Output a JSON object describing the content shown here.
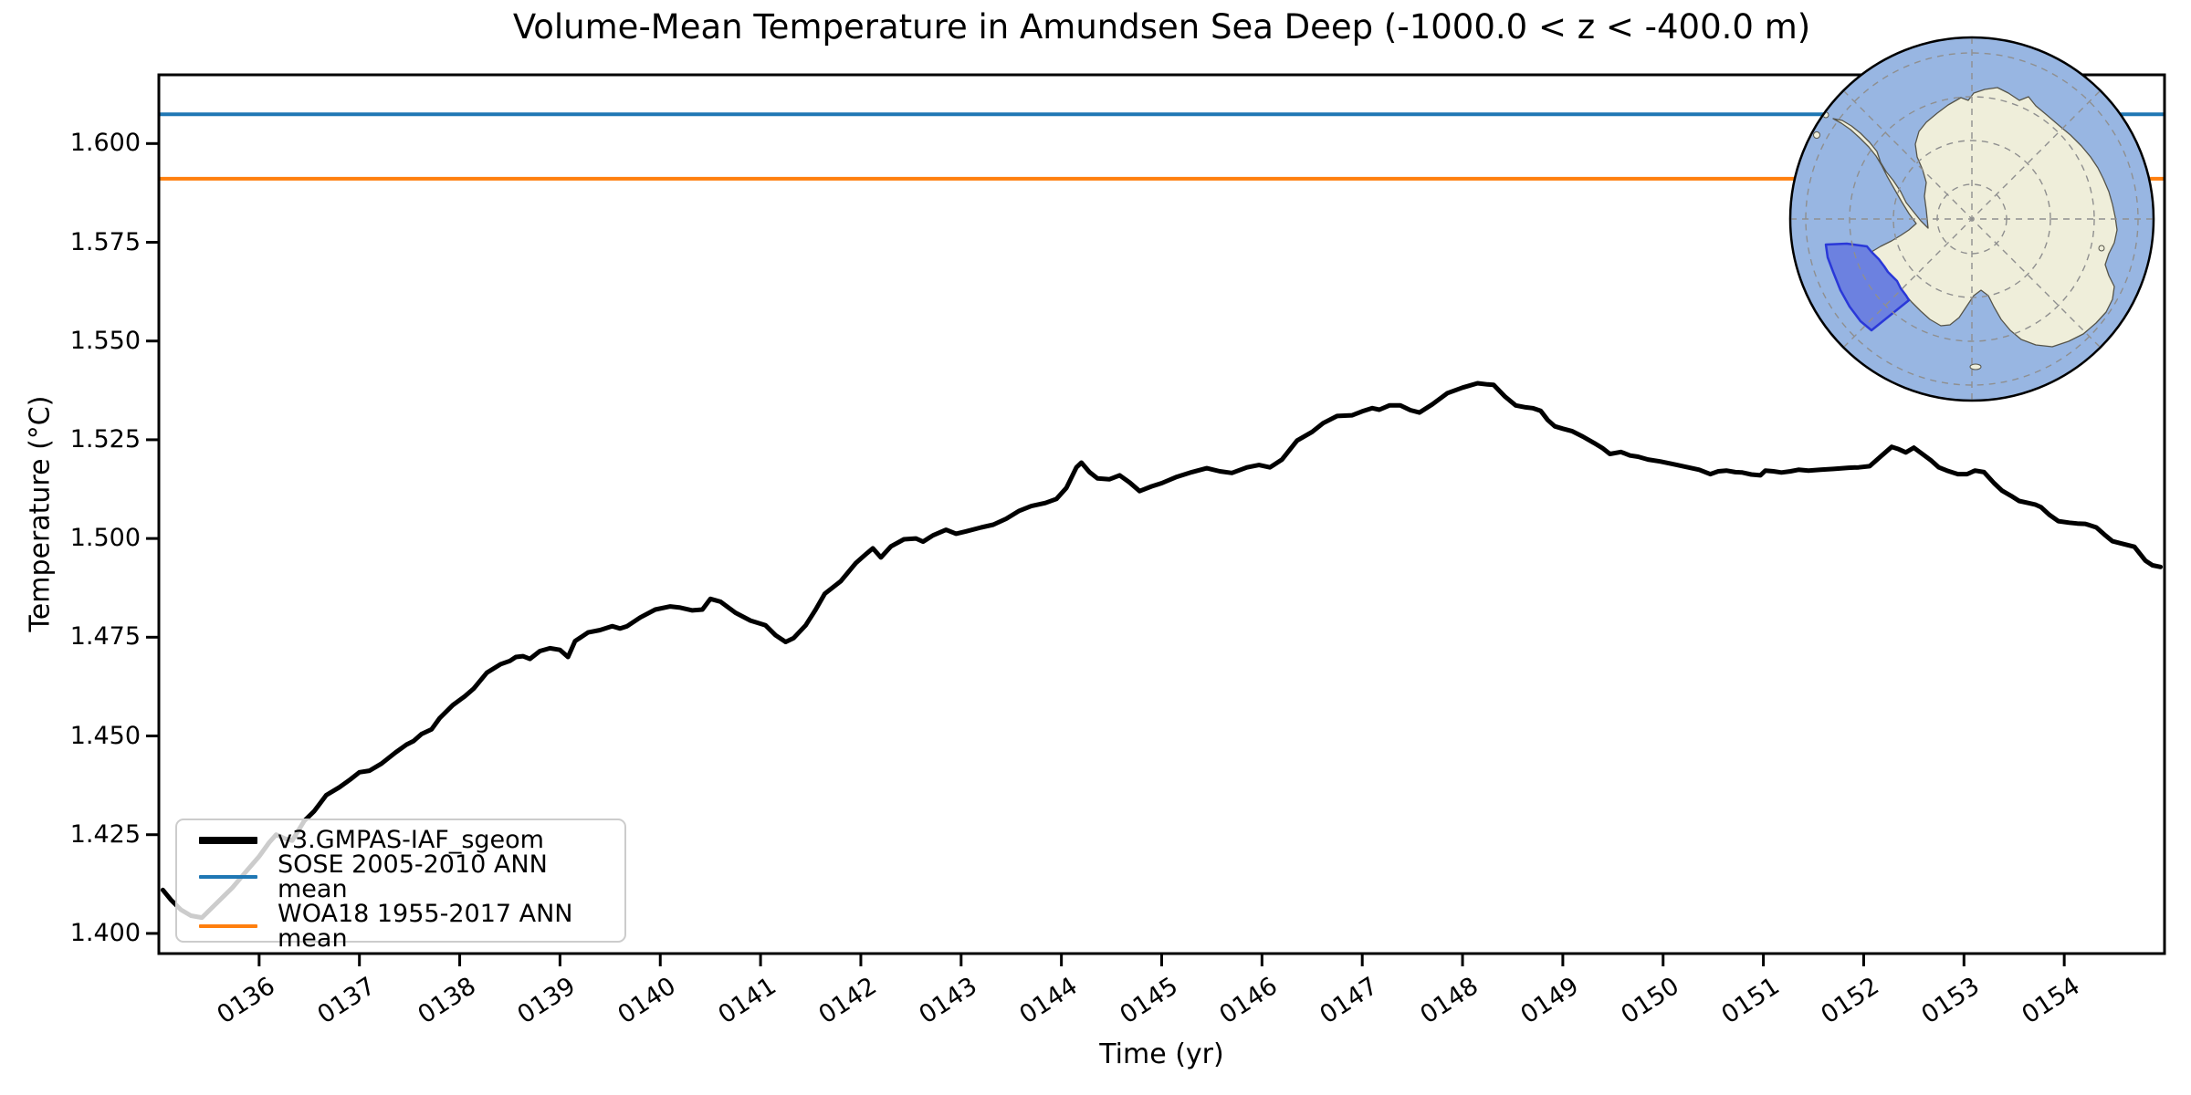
{
  "chart_data": {
    "type": "line",
    "title": "Volume-Mean Temperature in Amundsen Sea Deep (-1000.0 < z < -400.0 m)",
    "xlabel": "Time (yr)",
    "ylabel": "Temperature (°C)",
    "xlim": [
      135,
      155
    ],
    "ylim": [
      1.3949,
      1.6174
    ],
    "grid": false,
    "legend_position": "lower left",
    "x_tick_values": [
      136,
      137,
      138,
      139,
      140,
      141,
      142,
      143,
      144,
      145,
      146,
      147,
      148,
      149,
      150,
      151,
      152,
      153,
      154
    ],
    "x_tick_labels": [
      "0136",
      "0137",
      "0138",
      "0139",
      "0140",
      "0141",
      "0142",
      "0143",
      "0144",
      "0145",
      "0146",
      "0147",
      "0148",
      "0149",
      "0150",
      "0151",
      "0152",
      "0153",
      "0154"
    ],
    "y_tick_values": [
      1.4,
      1.425,
      1.45,
      1.475,
      1.5,
      1.525,
      1.55,
      1.575,
      1.6
    ],
    "y_tick_labels": [
      "1.400",
      "1.425",
      "1.450",
      "1.475",
      "1.500",
      "1.525",
      "1.550",
      "1.575",
      "1.600"
    ],
    "series": [
      {
        "name": "v3.GMPAS-IAF_sgeom",
        "style": "line",
        "color": "#000000",
        "points": [
          [
            135.04,
            1.411
          ],
          [
            135.12,
            1.4085
          ],
          [
            135.22,
            1.406
          ],
          [
            135.32,
            1.4045
          ],
          [
            135.43,
            1.404
          ],
          [
            135.55,
            1.407
          ],
          [
            135.65,
            1.4095
          ],
          [
            135.73,
            1.4115
          ],
          [
            135.88,
            1.416
          ],
          [
            136.0,
            1.4195
          ],
          [
            136.1,
            1.423
          ],
          [
            136.17,
            1.425
          ],
          [
            136.26,
            1.424
          ],
          [
            136.33,
            1.4235
          ],
          [
            136.45,
            1.4285
          ],
          [
            136.55,
            1.431
          ],
          [
            136.67,
            1.435
          ],
          [
            136.8,
            1.437
          ],
          [
            136.91,
            1.439
          ],
          [
            137.0,
            1.4408
          ],
          [
            137.1,
            1.4412
          ],
          [
            137.22,
            1.443
          ],
          [
            137.36,
            1.4458
          ],
          [
            137.47,
            1.4478
          ],
          [
            137.54,
            1.4487
          ],
          [
            137.62,
            1.4505
          ],
          [
            137.72,
            1.4517
          ],
          [
            137.8,
            1.4545
          ],
          [
            137.93,
            1.4578
          ],
          [
            138.05,
            1.46
          ],
          [
            138.14,
            1.462
          ],
          [
            138.27,
            1.466
          ],
          [
            138.41,
            1.4682
          ],
          [
            138.5,
            1.469
          ],
          [
            138.56,
            1.47
          ],
          [
            138.63,
            1.4702
          ],
          [
            138.7,
            1.4695
          ],
          [
            138.8,
            1.4715
          ],
          [
            138.9,
            1.4722
          ],
          [
            139.0,
            1.4718
          ],
          [
            139.08,
            1.47
          ],
          [
            139.15,
            1.474
          ],
          [
            139.28,
            1.4762
          ],
          [
            139.4,
            1.4768
          ],
          [
            139.52,
            1.4778
          ],
          [
            139.6,
            1.4772
          ],
          [
            139.67,
            1.4778
          ],
          [
            139.8,
            1.48
          ],
          [
            139.95,
            1.482
          ],
          [
            140.1,
            1.4828
          ],
          [
            140.2,
            1.4825
          ],
          [
            140.32,
            1.4818
          ],
          [
            140.42,
            1.482
          ],
          [
            140.5,
            1.4847
          ],
          [
            140.6,
            1.484
          ],
          [
            140.75,
            1.4812
          ],
          [
            140.9,
            1.4792
          ],
          [
            141.05,
            1.478
          ],
          [
            141.15,
            1.4755
          ],
          [
            141.25,
            1.4738
          ],
          [
            141.33,
            1.4748
          ],
          [
            141.45,
            1.478
          ],
          [
            141.55,
            1.482
          ],
          [
            141.64,
            1.486
          ],
          [
            141.8,
            1.4892
          ],
          [
            141.95,
            1.4938
          ],
          [
            142.05,
            1.496
          ],
          [
            142.12,
            1.4975
          ],
          [
            142.2,
            1.4952
          ],
          [
            142.3,
            1.498
          ],
          [
            142.43,
            1.4998
          ],
          [
            142.55,
            1.5
          ],
          [
            142.62,
            1.4992
          ],
          [
            142.72,
            1.5008
          ],
          [
            142.85,
            1.5022
          ],
          [
            142.95,
            1.5012
          ],
          [
            143.05,
            1.5018
          ],
          [
            143.2,
            1.5028
          ],
          [
            143.32,
            1.5035
          ],
          [
            143.45,
            1.505
          ],
          [
            143.58,
            1.507
          ],
          [
            143.7,
            1.5082
          ],
          [
            143.84,
            1.509
          ],
          [
            143.95,
            1.51
          ],
          [
            144.05,
            1.5128
          ],
          [
            144.15,
            1.518
          ],
          [
            144.2,
            1.5192
          ],
          [
            144.28,
            1.5168
          ],
          [
            144.36,
            1.5152
          ],
          [
            144.48,
            1.515
          ],
          [
            144.58,
            1.516
          ],
          [
            144.68,
            1.5142
          ],
          [
            144.78,
            1.512
          ],
          [
            144.9,
            1.5132
          ],
          [
            145.0,
            1.514
          ],
          [
            145.15,
            1.5156
          ],
          [
            145.3,
            1.5168
          ],
          [
            145.45,
            1.5178
          ],
          [
            145.58,
            1.517
          ],
          [
            145.7,
            1.5166
          ],
          [
            145.85,
            1.518
          ],
          [
            145.97,
            1.5186
          ],
          [
            146.08,
            1.518
          ],
          [
            146.2,
            1.52
          ],
          [
            146.35,
            1.5248
          ],
          [
            146.5,
            1.527
          ],
          [
            146.61,
            1.5292
          ],
          [
            146.75,
            1.531
          ],
          [
            146.9,
            1.5312
          ],
          [
            147.0,
            1.5322
          ],
          [
            147.1,
            1.533
          ],
          [
            147.17,
            1.5326
          ],
          [
            147.27,
            1.5337
          ],
          [
            147.38,
            1.5337
          ],
          [
            147.48,
            1.5325
          ],
          [
            147.57,
            1.5319
          ],
          [
            147.7,
            1.534
          ],
          [
            147.85,
            1.5368
          ],
          [
            148.0,
            1.5382
          ],
          [
            148.15,
            1.5393
          ],
          [
            148.25,
            1.539
          ],
          [
            148.31,
            1.5389
          ],
          [
            148.42,
            1.536
          ],
          [
            148.53,
            1.5337
          ],
          [
            148.63,
            1.5332
          ],
          [
            148.7,
            1.533
          ],
          [
            148.78,
            1.5323
          ],
          [
            148.85,
            1.53
          ],
          [
            148.92,
            1.5284
          ],
          [
            149.0,
            1.5278
          ],
          [
            149.09,
            1.5272
          ],
          [
            149.2,
            1.5258
          ],
          [
            149.31,
            1.5242
          ],
          [
            149.4,
            1.5228
          ],
          [
            149.47,
            1.5214
          ],
          [
            149.58,
            1.5219
          ],
          [
            149.67,
            1.521
          ],
          [
            149.75,
            1.5207
          ],
          [
            149.85,
            1.52
          ],
          [
            149.97,
            1.5195
          ],
          [
            150.07,
            1.519
          ],
          [
            150.14,
            1.5186
          ],
          [
            150.25,
            1.518
          ],
          [
            150.36,
            1.5174
          ],
          [
            150.47,
            1.5163
          ],
          [
            150.55,
            1.517
          ],
          [
            150.63,
            1.5172
          ],
          [
            150.72,
            1.5168
          ],
          [
            150.79,
            1.5167
          ],
          [
            150.88,
            1.5162
          ],
          [
            150.97,
            1.516
          ],
          [
            151.02,
            1.5172
          ],
          [
            151.1,
            1.517
          ],
          [
            151.18,
            1.5167
          ],
          [
            151.27,
            1.517
          ],
          [
            151.35,
            1.5174
          ],
          [
            151.45,
            1.5172
          ],
          [
            151.57,
            1.5174
          ],
          [
            151.7,
            1.5176
          ],
          [
            151.85,
            1.5179
          ],
          [
            151.95,
            1.518
          ],
          [
            152.06,
            1.5183
          ],
          [
            152.18,
            1.521
          ],
          [
            152.28,
            1.5232
          ],
          [
            152.35,
            1.5226
          ],
          [
            152.42,
            1.5218
          ],
          [
            152.5,
            1.523
          ],
          [
            152.58,
            1.5215
          ],
          [
            152.67,
            1.5198
          ],
          [
            152.75,
            1.518
          ],
          [
            152.83,
            1.5172
          ],
          [
            152.94,
            1.5163
          ],
          [
            153.03,
            1.5163
          ],
          [
            153.11,
            1.5172
          ],
          [
            153.2,
            1.5168
          ],
          [
            153.3,
            1.514
          ],
          [
            153.38,
            1.5121
          ],
          [
            153.47,
            1.5108
          ],
          [
            153.55,
            1.5095
          ],
          [
            153.64,
            1.509
          ],
          [
            153.71,
            1.5086
          ],
          [
            153.77,
            1.5079
          ],
          [
            153.85,
            1.506
          ],
          [
            153.94,
            1.5044
          ],
          [
            154.05,
            1.504
          ],
          [
            154.13,
            1.5038
          ],
          [
            154.21,
            1.5037
          ],
          [
            154.32,
            1.5028
          ],
          [
            154.4,
            1.501
          ],
          [
            154.48,
            1.4993
          ],
          [
            154.59,
            1.4986
          ],
          [
            154.7,
            1.4979
          ],
          [
            154.81,
            1.4944
          ],
          [
            154.88,
            1.4932
          ],
          [
            154.96,
            1.4928
          ]
        ]
      },
      {
        "name": "SOSE 2005-2010 ANN mean",
        "style": "hline",
        "color": "#1f77b4",
        "value": 1.6074
      },
      {
        "name": "WOA18 1955-2017 ANN mean",
        "style": "hline",
        "color": "#ff7f0e",
        "value": 1.5911
      }
    ]
  },
  "inset_map": {
    "ocean_color": "#98b6e2",
    "land_color": "#efeeda",
    "coast_color": "#55544a",
    "graticule_color": "#8f8f8f",
    "outline_color": "#000000",
    "region_fill": "rgba(72,85,222,0.55)",
    "region_stroke": "#2a38d8"
  }
}
